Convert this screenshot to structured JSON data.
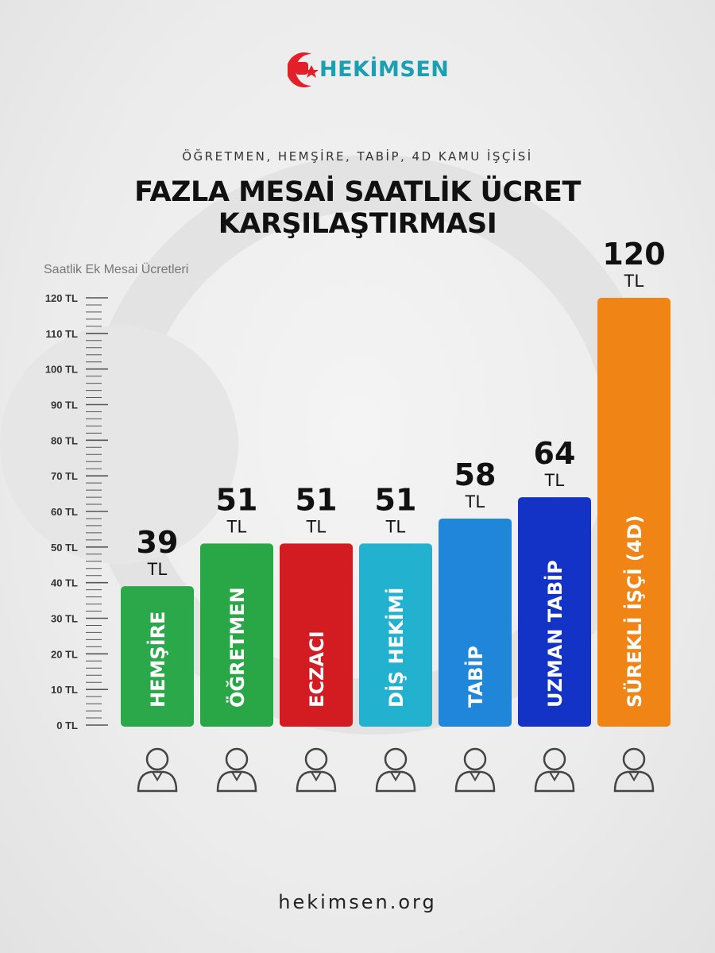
{
  "brand": {
    "name": "HEKİMSEN",
    "color": "#1a9fb3",
    "mark_color": "#e1202a"
  },
  "header": {
    "subtitle": "ÖĞRETMEN, HEMŞİRE, TABİP, 4D KAMU İŞÇİSİ",
    "title_line1": "FAZLA MESAİ SAATLİK ÜCRET",
    "title_line2": "KARŞILAŞTIRMASI"
  },
  "footer": {
    "url": "hekimsen.org"
  },
  "chart_data": {
    "type": "bar",
    "ylabel": "Saatlik Ek Mesai Ücretleri",
    "ylim": [
      0,
      120
    ],
    "yticks": [
      "0 TL",
      "10 TL",
      "20 TL",
      "30 TL",
      "40 TL",
      "50 TL",
      "60 TL",
      "70 TL",
      "80 TL",
      "90 TL",
      "100 TL",
      "110 TL",
      "120 TL"
    ],
    "unit": "TL",
    "categories": [
      "HEMŞİRE",
      "ÖĞRETMEN",
      "ECZACI",
      "DİŞ HEKİMİ",
      "TABİP",
      "UZMAN TABİP",
      "SÜREKLİ İŞÇİ (4D)"
    ],
    "values": [
      39,
      51,
      51,
      51,
      58,
      64,
      120
    ],
    "colors": [
      "#2aa84a",
      "#29a646",
      "#d31b22",
      "#22b2cf",
      "#1f86d9",
      "#1233c6",
      "#f08414"
    ],
    "icons": [
      "nurse-icon",
      "teacher-icon",
      "pharmacist-icon",
      "dentist-icon",
      "doctor-icon",
      "specialist-doctor-icon",
      "worker-icon"
    ],
    "grid": false,
    "legend": "none"
  }
}
